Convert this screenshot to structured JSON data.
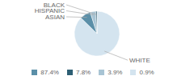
{
  "chart_data": {
    "type": "pie",
    "categories": [
      "WHITE",
      "ASIAN",
      "HISPANIC",
      "BLACK"
    ],
    "values": [
      87.4,
      7.8,
      3.9,
      0.9
    ],
    "value_labels": [
      "87.4%",
      "7.8%",
      "3.9%",
      "0.9%"
    ],
    "colors": [
      "#d4e4ef",
      "#5b8fa8",
      "#a8c4d4",
      "#2e5f74"
    ],
    "legend": "bottom"
  }
}
